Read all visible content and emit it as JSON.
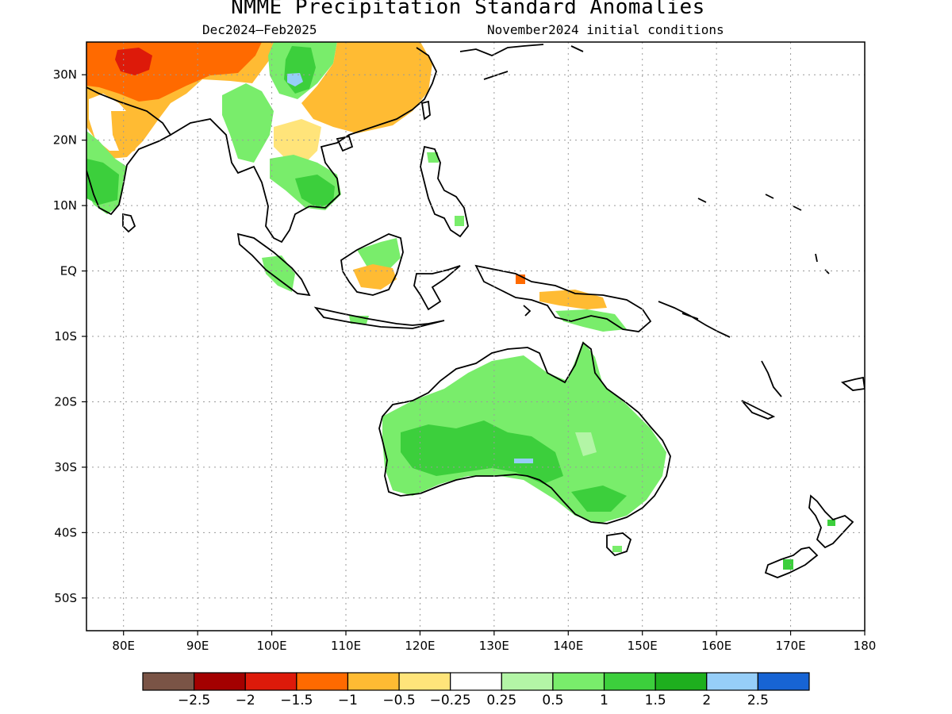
{
  "title": "NMME Precipitation Standard Anomalies",
  "subtitle_left": "Dec2024–Feb2025",
  "subtitle_right": "November2024 initial conditions",
  "map": {
    "lon_range": [
      75,
      180
    ],
    "lat_range": [
      -55,
      35
    ],
    "x_ticks": [
      {
        "lon": 80,
        "label": "80E"
      },
      {
        "lon": 90,
        "label": "90E"
      },
      {
        "lon": 100,
        "label": "100E"
      },
      {
        "lon": 110,
        "label": "110E"
      },
      {
        "lon": 120,
        "label": "120E"
      },
      {
        "lon": 130,
        "label": "130E"
      },
      {
        "lon": 140,
        "label": "140E"
      },
      {
        "lon": 150,
        "label": "150E"
      },
      {
        "lon": 160,
        "label": "160E"
      },
      {
        "lon": 170,
        "label": "170E"
      },
      {
        "lon": 180,
        "label": "180"
      }
    ],
    "y_ticks": [
      {
        "lat": 30,
        "label": "30N"
      },
      {
        "lat": 20,
        "label": "20N"
      },
      {
        "lat": 10,
        "label": "10N"
      },
      {
        "lat": 0,
        "label": "EQ"
      },
      {
        "lat": -10,
        "label": "10S"
      },
      {
        "lat": -20,
        "label": "20S"
      },
      {
        "lat": -30,
        "label": "30S"
      },
      {
        "lat": -40,
        "label": "40S"
      },
      {
        "lat": -50,
        "label": "50S"
      }
    ],
    "grid": true
  },
  "colorbar": {
    "colors": [
      "#7a5446",
      "#a30000",
      "#dd1a0a",
      "#ff6a00",
      "#ffbb33",
      "#ffe47a",
      "#ffffff",
      "#b3f5a6",
      "#79ed6b",
      "#3ccf3c",
      "#1eaf1e",
      "#96cef8",
      "#1764d4"
    ],
    "labels": [
      "−2.5",
      "−2",
      "−1.5",
      "−1",
      "−0.5",
      "−0.25",
      "0.25",
      "0.5",
      "1",
      "1.5",
      "2",
      "2.5"
    ]
  }
}
